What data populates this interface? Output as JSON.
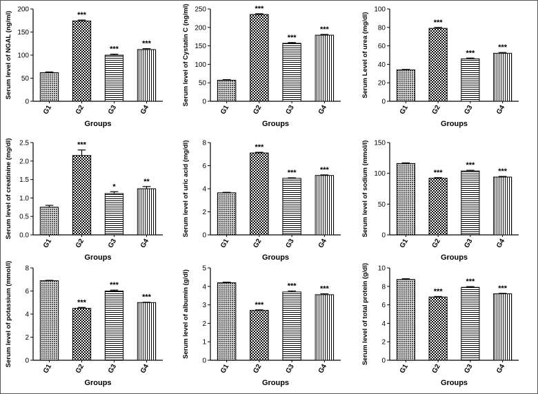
{
  "colors": {
    "axis": "#000000",
    "bar_outline": "#000000",
    "background": "#ffffff"
  },
  "chart_data": [
    {
      "type": "bar",
      "title": "",
      "xlabel": "Groups",
      "ylabel": "Serum level of NGAL (ng/ml)",
      "categories": [
        "G1",
        "G2",
        "G3",
        "G4"
      ],
      "values": [
        62,
        174,
        100,
        112
      ],
      "errors": [
        1.5,
        2,
        2,
        2
      ],
      "sig": [
        "",
        "***",
        "***",
        "***"
      ],
      "ylim": [
        0,
        200
      ],
      "yticks": [
        0,
        50,
        100,
        150,
        200
      ],
      "ytick_labels": [
        "0",
        "50",
        "100",
        "150",
        "200"
      ],
      "patterns": [
        "dots",
        "check",
        "hlines",
        "vlines"
      ]
    },
    {
      "type": "bar",
      "title": "",
      "xlabel": "Groups",
      "ylabel": "Serum level of Cystatin C (ng/ml)",
      "categories": [
        "G1",
        "G2",
        "G3",
        "G4"
      ],
      "values": [
        57,
        235,
        157,
        179
      ],
      "errors": [
        1.5,
        2,
        2,
        2
      ],
      "sig": [
        "",
        "***",
        "***",
        "***"
      ],
      "ylim": [
        0,
        250
      ],
      "yticks": [
        0,
        50,
        100,
        150,
        200,
        250
      ],
      "ytick_labels": [
        "0",
        "50",
        "100",
        "150",
        "200",
        "250"
      ],
      "patterns": [
        "dots",
        "check",
        "hlines",
        "vlines"
      ]
    },
    {
      "type": "bar",
      "title": "",
      "xlabel": "Groups",
      "ylabel": "Serum Level of urea (mg/dl)",
      "categories": [
        "G1",
        "G2",
        "G3",
        "G4"
      ],
      "values": [
        34,
        79,
        46,
        52
      ],
      "errors": [
        0.5,
        1,
        0.8,
        0.8
      ],
      "sig": [
        "",
        "***",
        "***",
        "***"
      ],
      "ylim": [
        0,
        100
      ],
      "yticks": [
        0,
        20,
        40,
        60,
        80,
        100
      ],
      "ytick_labels": [
        "0",
        "20",
        "40",
        "60",
        "80",
        "100"
      ],
      "patterns": [
        "dots",
        "check",
        "hlines",
        "vlines"
      ]
    },
    {
      "type": "bar",
      "title": "",
      "xlabel": "Groups",
      "ylabel": "Serum level of creatinine (mg/dl)",
      "categories": [
        "G1",
        "G2",
        "G3",
        "G4"
      ],
      "values": [
        0.75,
        2.15,
        1.12,
        1.25
      ],
      "errors": [
        0.05,
        0.15,
        0.05,
        0.06
      ],
      "sig": [
        "",
        "***",
        "*",
        "**"
      ],
      "ylim": [
        0,
        2.5
      ],
      "yticks": [
        0,
        0.5,
        1.0,
        1.5,
        2.0,
        2.5
      ],
      "ytick_labels": [
        "0.0",
        "0.5",
        "1.0",
        "1.5",
        "2.0",
        "2.5"
      ],
      "patterns": [
        "dots",
        "check",
        "hlines",
        "vlines"
      ]
    },
    {
      "type": "bar",
      "title": "",
      "xlabel": "Groups",
      "ylabel": "Serum level of uric acid (mg/dl)",
      "categories": [
        "G1",
        "G2",
        "G3",
        "G4"
      ],
      "values": [
        3.65,
        7.1,
        4.9,
        5.15
      ],
      "errors": [
        0.04,
        0.06,
        0.05,
        0.05
      ],
      "sig": [
        "",
        "***",
        "***",
        "***"
      ],
      "ylim": [
        0,
        8
      ],
      "yticks": [
        0,
        2,
        4,
        6,
        8
      ],
      "ytick_labels": [
        "0",
        "2",
        "4",
        "6",
        "8"
      ],
      "patterns": [
        "dots",
        "check",
        "hlines",
        "vlines"
      ]
    },
    {
      "type": "bar",
      "title": "",
      "xlabel": "Groups",
      "ylabel": "Serum level of sodium (mmol/l)",
      "categories": [
        "G1",
        "G2",
        "G3",
        "G4"
      ],
      "values": [
        116,
        92,
        104,
        94
      ],
      "errors": [
        1,
        1,
        1,
        1
      ],
      "sig": [
        "",
        "***",
        "***",
        "***"
      ],
      "ylim": [
        0,
        150
      ],
      "yticks": [
        0,
        50,
        100,
        150
      ],
      "ytick_labels": [
        "0",
        "50",
        "100",
        "150"
      ],
      "patterns": [
        "dots",
        "check",
        "hlines",
        "vlines"
      ]
    },
    {
      "type": "bar",
      "title": "",
      "xlabel": "Groups",
      "ylabel": "Serum level of potassium (mmol/l)",
      "categories": [
        "G1",
        "G2",
        "G3",
        "G4"
      ],
      "values": [
        6.9,
        4.5,
        6.0,
        5.0
      ],
      "errors": [
        0.03,
        0.08,
        0.08,
        0.03
      ],
      "sig": [
        "",
        "***",
        "***",
        "***"
      ],
      "ylim": [
        0,
        8
      ],
      "yticks": [
        0,
        2,
        4,
        6,
        8
      ],
      "ytick_labels": [
        "0",
        "2",
        "4",
        "6",
        "8"
      ],
      "patterns": [
        "dots",
        "check",
        "hlines",
        "vlines"
      ]
    },
    {
      "type": "bar",
      "title": "",
      "xlabel": "Groups",
      "ylabel": "Serum level of albumin (g/dl)",
      "categories": [
        "G1",
        "G2",
        "G3",
        "G4"
      ],
      "values": [
        4.2,
        2.7,
        3.7,
        3.55
      ],
      "errors": [
        0.03,
        0.03,
        0.05,
        0.05
      ],
      "sig": [
        "",
        "***",
        "***",
        "***"
      ],
      "ylim": [
        0,
        5
      ],
      "yticks": [
        0,
        1,
        2,
        3,
        4,
        5
      ],
      "ytick_labels": [
        "0",
        "1",
        "2",
        "3",
        "4",
        "5"
      ],
      "patterns": [
        "dots",
        "check",
        "hlines",
        "vlines"
      ]
    },
    {
      "type": "bar",
      "title": "",
      "xlabel": "Groups",
      "ylabel": "Serum level of total protein (g/dl)",
      "categories": [
        "G1",
        "G2",
        "G3",
        "G4"
      ],
      "values": [
        8.75,
        6.85,
        7.9,
        7.2
      ],
      "errors": [
        0.08,
        0.06,
        0.08,
        0.05
      ],
      "sig": [
        "",
        "***",
        "***",
        "***"
      ],
      "ylim": [
        0,
        10
      ],
      "yticks": [
        0,
        2,
        4,
        6,
        8,
        10
      ],
      "ytick_labels": [
        "0",
        "2",
        "4",
        "6",
        "8",
        "10"
      ],
      "patterns": [
        "dots",
        "check",
        "hlines",
        "vlines"
      ]
    }
  ]
}
